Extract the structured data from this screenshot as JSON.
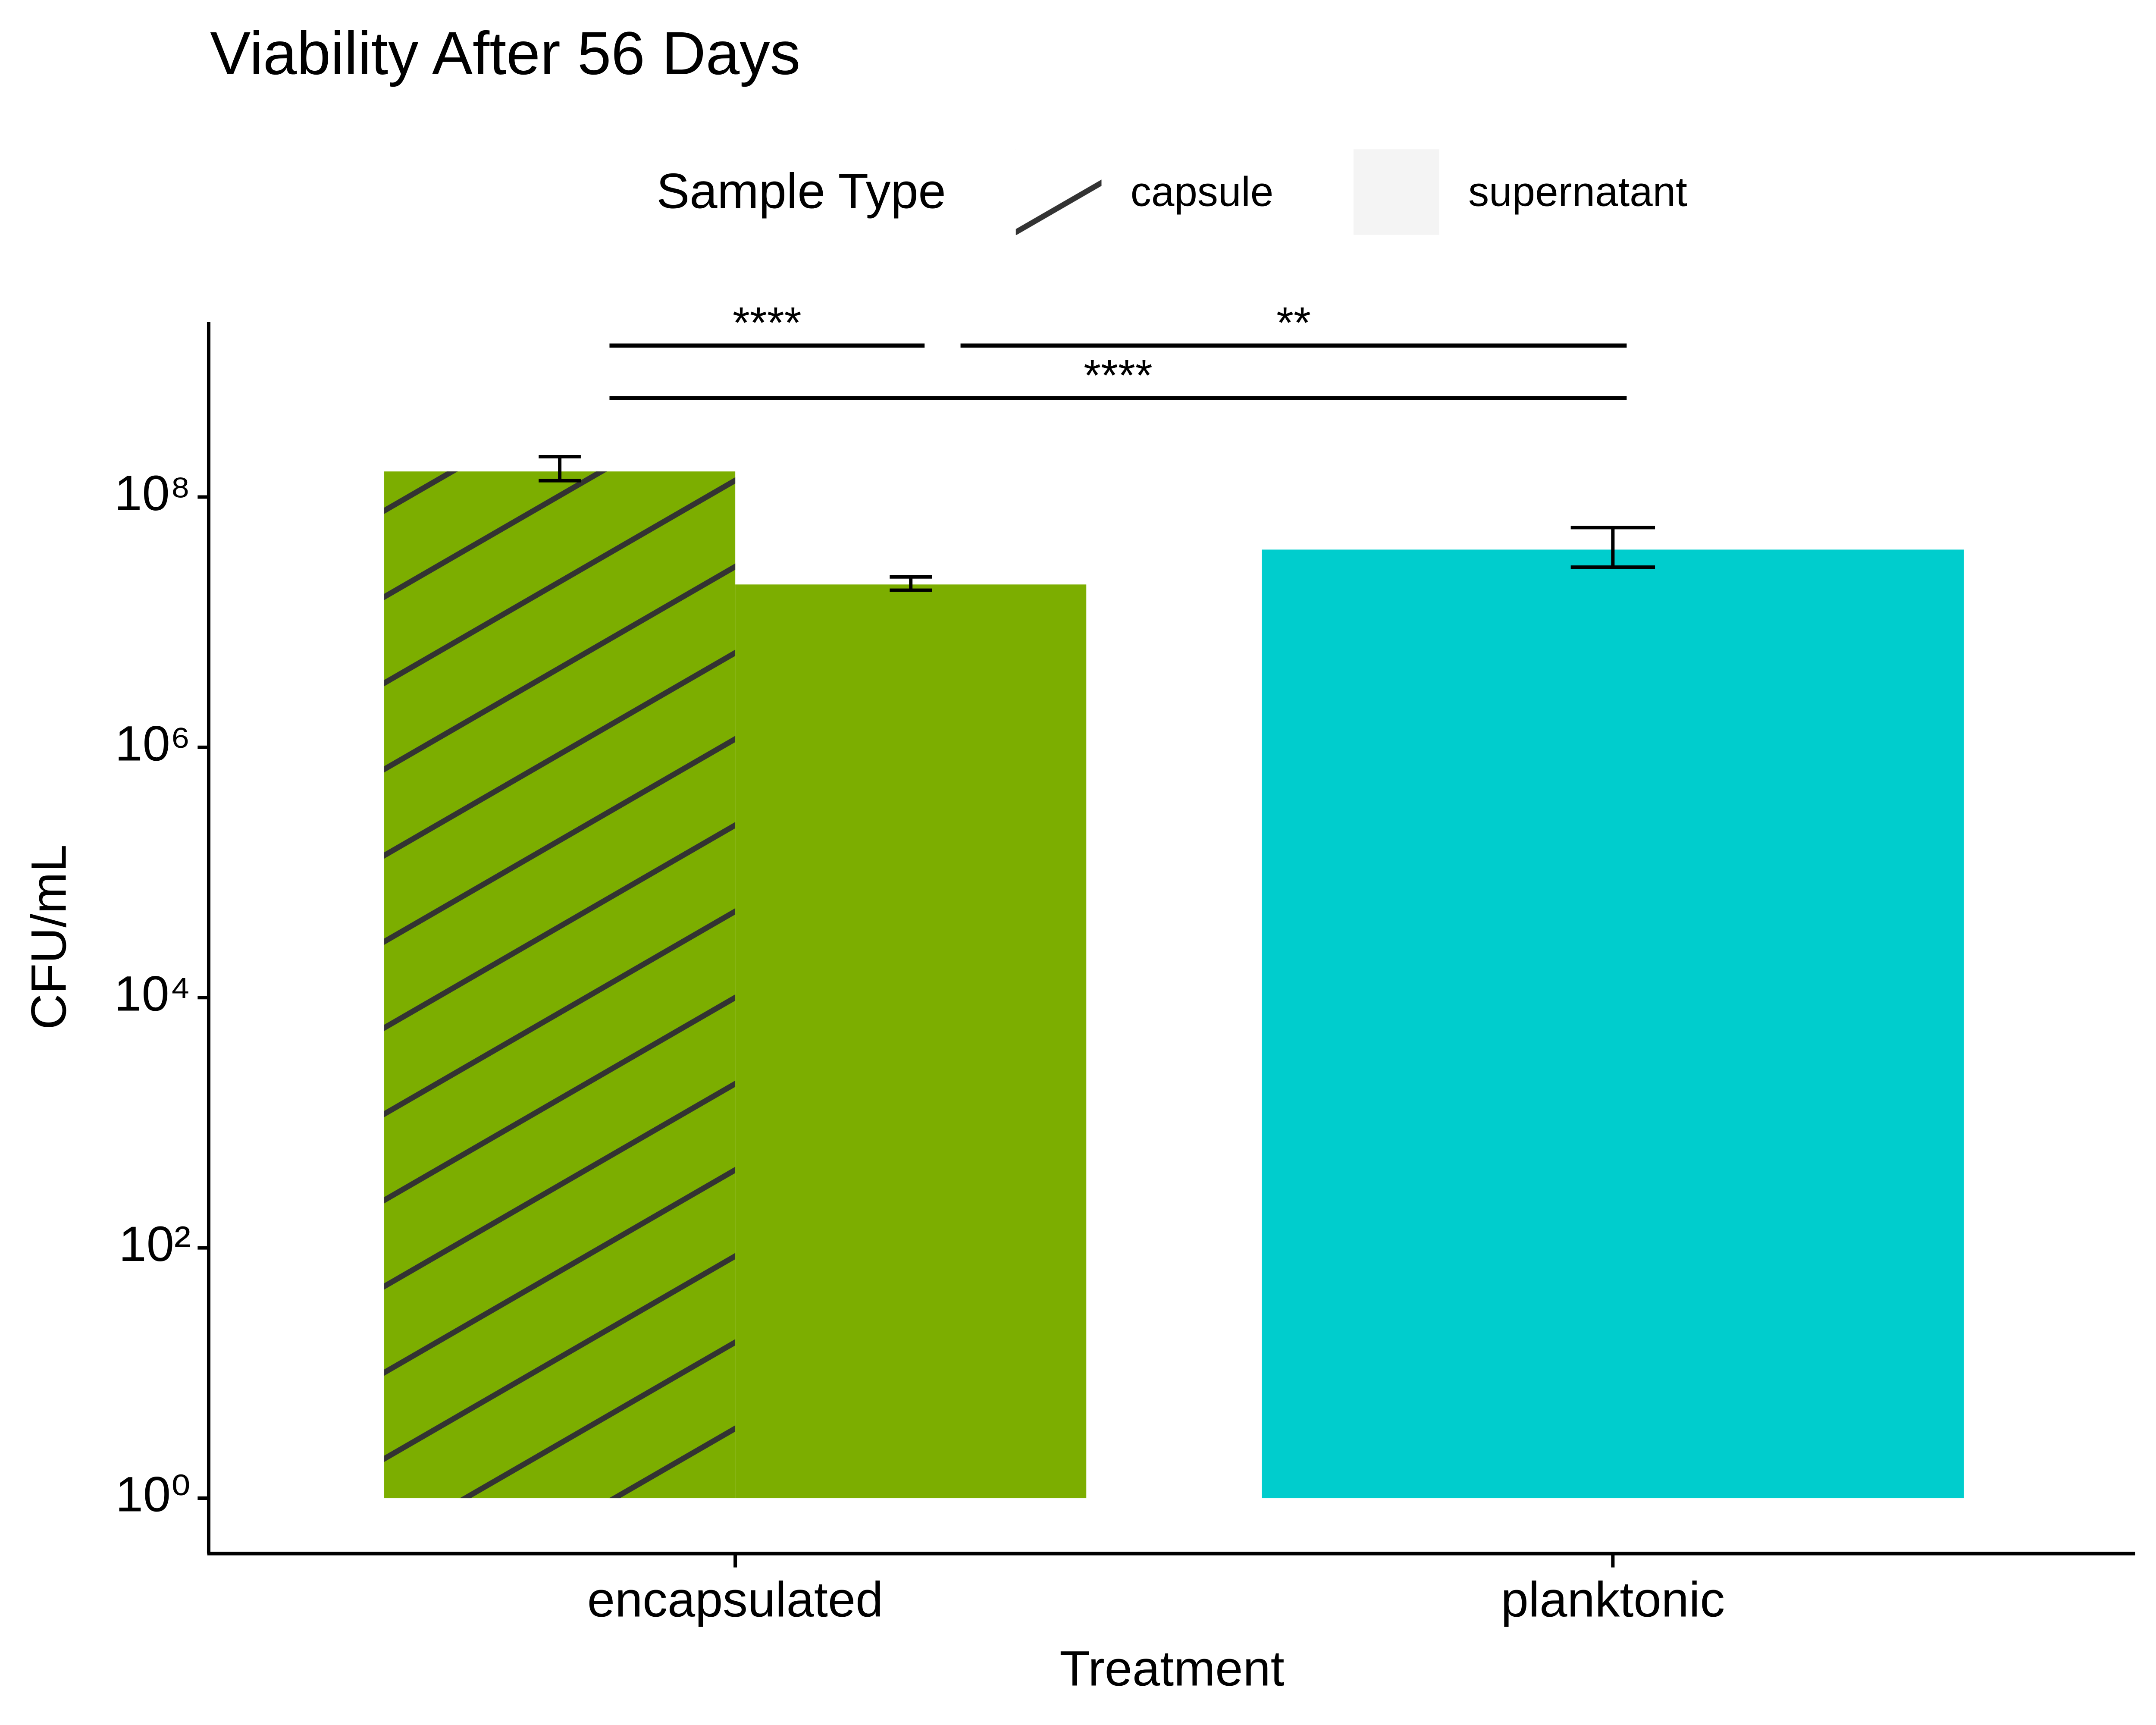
{
  "chart_data": {
    "type": "bar",
    "title": "Viability After 56 Days",
    "x_label": "Treatment",
    "y_label": "CFU/mL",
    "legend_title": "Sample Type",
    "legend_position": "top",
    "categories": [
      "encapsulated",
      "planktonic"
    ],
    "category_colors": [
      "#7cae00",
      "#00cdcd"
    ],
    "series": [
      {
        "name": "capsule",
        "pattern": "hatch",
        "values": [
          160000000,
          null
        ],
        "ci_low": [
          135000000,
          null
        ],
        "ci_high": [
          210000000,
          null
        ]
      },
      {
        "name": "supernatant",
        "pattern": "none",
        "values": [
          20000000,
          38000000
        ],
        "ci_low": [
          18000000,
          27500000
        ],
        "ci_high": [
          23000000,
          57000000
        ]
      }
    ],
    "y_scale": "log",
    "ylim": [
      0.37,
      2500000000
    ],
    "yticks": [
      {
        "value": 1,
        "label": "10⁰"
      },
      {
        "value": 100,
        "label": "10²"
      },
      {
        "value": 10000,
        "label": "10⁴"
      },
      {
        "value": 1000000,
        "label": "10⁶"
      },
      {
        "value": 100000000,
        "label": "10⁸"
      }
    ],
    "grid": false,
    "comparisons": [
      {
        "label": "****",
        "a": [
          0,
          0
        ],
        "b": [
          1,
          0
        ]
      },
      {
        "label": "**",
        "a": [
          1,
          0
        ],
        "b": [
          1,
          1
        ]
      },
      {
        "label": "****",
        "a": [
          0,
          0
        ],
        "b": [
          1,
          1
        ]
      }
    ]
  }
}
